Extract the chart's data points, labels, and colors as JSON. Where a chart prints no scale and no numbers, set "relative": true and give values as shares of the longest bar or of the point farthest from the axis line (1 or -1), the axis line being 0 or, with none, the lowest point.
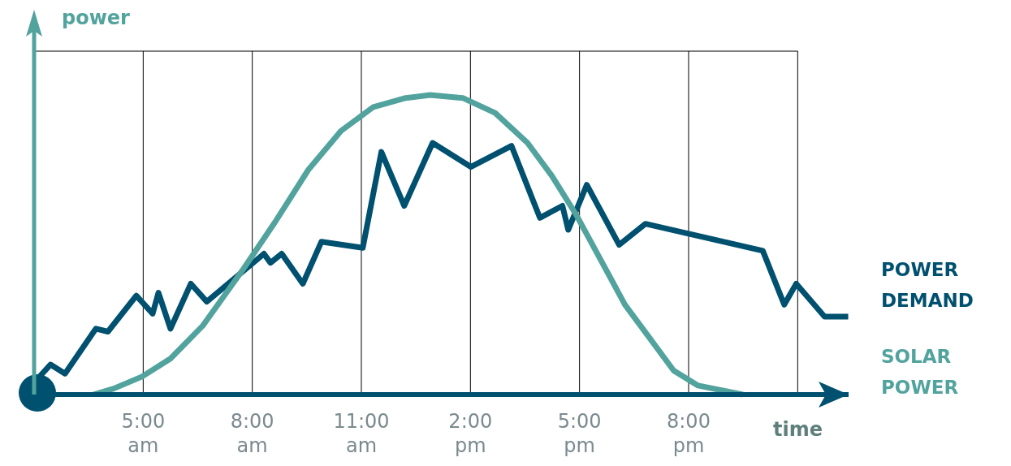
{
  "chart_data": {
    "type": "line",
    "relative": true,
    "xlabel": "time",
    "ylabel": "power",
    "xlim": [
      2,
      24.4
    ],
    "xticks": [
      {
        "value": 2,
        "label": null
      },
      {
        "value": 5,
        "label": "5:00\nam"
      },
      {
        "value": 8,
        "label": "8:00\nam"
      },
      {
        "value": 11,
        "label": "11:00\nam"
      },
      {
        "value": 14,
        "label": "2:00\npm"
      },
      {
        "value": 17,
        "label": "5:00\npm"
      },
      {
        "value": 20,
        "label": "8:00\npm"
      },
      {
        "value": 23,
        "label": null
      }
    ],
    "grid": "x",
    "marker": "none",
    "line_style": "solid",
    "series": [
      {
        "name": "POWER\nDEMAND",
        "color": "#00506f",
        "x": [
          2.0,
          2.45,
          2.85,
          3.7,
          4.03,
          4.81,
          5.26,
          5.42,
          5.75,
          6.31,
          6.75,
          8.32,
          8.5,
          8.81,
          9.39,
          9.9,
          11.04,
          11.55,
          12.18,
          12.96,
          14.01,
          15.13,
          15.91,
          16.53,
          16.69,
          17.2,
          18.09,
          18.81,
          22.04,
          22.63,
          22.96,
          23.74,
          24.39
        ],
        "values": [
          0.04,
          0.1,
          0.07,
          0.22,
          0.21,
          0.33,
          0.27,
          0.34,
          0.22,
          0.37,
          0.31,
          0.47,
          0.44,
          0.47,
          0.37,
          0.51,
          0.49,
          0.81,
          0.63,
          0.84,
          0.76,
          0.83,
          0.59,
          0.63,
          0.55,
          0.7,
          0.5,
          0.57,
          0.48,
          0.3,
          0.37,
          0.26,
          0.26
        ]
      },
      {
        "name": "SOLAR\nPOWER",
        "color": "#52a39e",
        "x": [
          3.63,
          4.19,
          4.97,
          5.75,
          6.64,
          7.76,
          8.65,
          9.54,
          10.44,
          11.33,
          12.22,
          12.89,
          13.79,
          14.68,
          15.57,
          16.24,
          16.91,
          17.58,
          18.25,
          18.92,
          19.59,
          20.26,
          21.49
        ],
        "values": [
          0,
          0.02,
          0.06,
          0.12,
          0.23,
          0.42,
          0.58,
          0.75,
          0.88,
          0.96,
          0.99,
          1.0,
          0.99,
          0.94,
          0.84,
          0.73,
          0.6,
          0.45,
          0.3,
          0.19,
          0.08,
          0.03,
          0
        ]
      }
    ]
  }
}
